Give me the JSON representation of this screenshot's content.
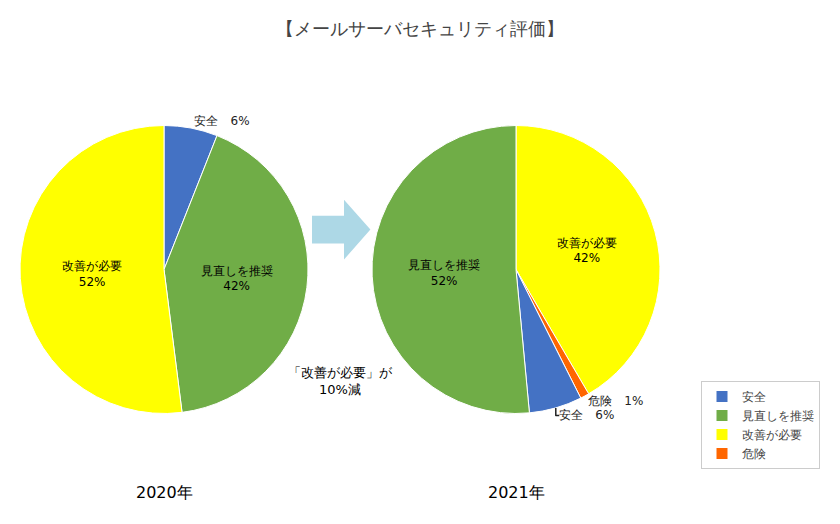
{
  "chart_data": {
    "type": "pie",
    "title": "【メールサーバセキュリティ評価】",
    "legend": "lower right",
    "annotations": [
      "「改善が必要」が",
      "10%減"
    ],
    "series": [
      {
        "name": "2020年",
        "categories": [
          "安全",
          "見直しを推奨",
          "改善が必要"
        ],
        "values": [
          6,
          42,
          52
        ],
        "colors": [
          "#4472C4",
          "#70AD47",
          "#FFFF00"
        ],
        "value_labels": [
          "安全　6%",
          "見直しを推奨\n42%",
          "改善が必要\n52%"
        ]
      },
      {
        "name": "2021年",
        "categories": [
          "改善が必要",
          "危険",
          "安全",
          "見直しを推奨"
        ],
        "values": [
          42,
          1,
          6,
          52
        ],
        "colors": [
          "#FFFF00",
          "#FF6600",
          "#4472C4",
          "#70AD47"
        ],
        "value_labels": [
          "改善が必要\n42%",
          "危険　1%",
          "安全　6%",
          "見直しを推奨\n52%"
        ]
      }
    ]
  }
}
